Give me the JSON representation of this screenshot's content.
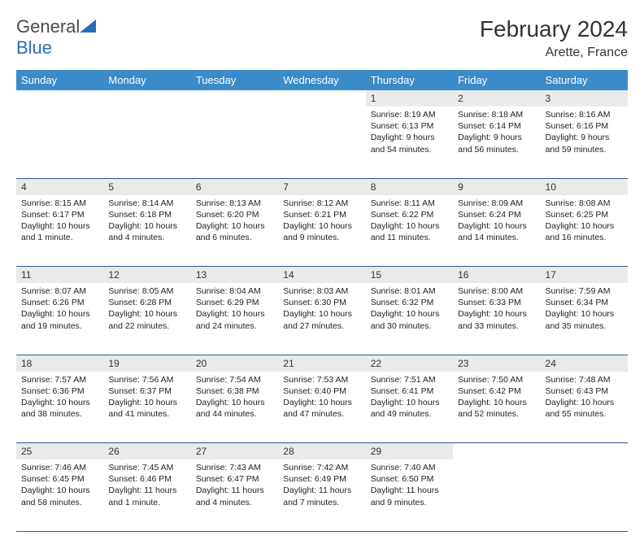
{
  "brand": {
    "part1": "General",
    "part2": "Blue"
  },
  "title": "February 2024",
  "location": "Arette, France",
  "colors": {
    "header_bg": "#3b8bc9",
    "header_text": "#ffffff",
    "daynum_bg": "#eaeaea",
    "border": "#2a5a8a",
    "logo_blue": "#2a6db8"
  },
  "weekdays": [
    "Sunday",
    "Monday",
    "Tuesday",
    "Wednesday",
    "Thursday",
    "Friday",
    "Saturday"
  ],
  "weeks": [
    [
      null,
      null,
      null,
      null,
      {
        "n": "1",
        "sr": "Sunrise: 8:19 AM",
        "ss": "Sunset: 6:13 PM",
        "dl": "Daylight: 9 hours and 54 minutes."
      },
      {
        "n": "2",
        "sr": "Sunrise: 8:18 AM",
        "ss": "Sunset: 6:14 PM",
        "dl": "Daylight: 9 hours and 56 minutes."
      },
      {
        "n": "3",
        "sr": "Sunrise: 8:16 AM",
        "ss": "Sunset: 6:16 PM",
        "dl": "Daylight: 9 hours and 59 minutes."
      }
    ],
    [
      {
        "n": "4",
        "sr": "Sunrise: 8:15 AM",
        "ss": "Sunset: 6:17 PM",
        "dl": "Daylight: 10 hours and 1 minute."
      },
      {
        "n": "5",
        "sr": "Sunrise: 8:14 AM",
        "ss": "Sunset: 6:18 PM",
        "dl": "Daylight: 10 hours and 4 minutes."
      },
      {
        "n": "6",
        "sr": "Sunrise: 8:13 AM",
        "ss": "Sunset: 6:20 PM",
        "dl": "Daylight: 10 hours and 6 minutes."
      },
      {
        "n": "7",
        "sr": "Sunrise: 8:12 AM",
        "ss": "Sunset: 6:21 PM",
        "dl": "Daylight: 10 hours and 9 minutes."
      },
      {
        "n": "8",
        "sr": "Sunrise: 8:11 AM",
        "ss": "Sunset: 6:22 PM",
        "dl": "Daylight: 10 hours and 11 minutes."
      },
      {
        "n": "9",
        "sr": "Sunrise: 8:09 AM",
        "ss": "Sunset: 6:24 PM",
        "dl": "Daylight: 10 hours and 14 minutes."
      },
      {
        "n": "10",
        "sr": "Sunrise: 8:08 AM",
        "ss": "Sunset: 6:25 PM",
        "dl": "Daylight: 10 hours and 16 minutes."
      }
    ],
    [
      {
        "n": "11",
        "sr": "Sunrise: 8:07 AM",
        "ss": "Sunset: 6:26 PM",
        "dl": "Daylight: 10 hours and 19 minutes."
      },
      {
        "n": "12",
        "sr": "Sunrise: 8:05 AM",
        "ss": "Sunset: 6:28 PM",
        "dl": "Daylight: 10 hours and 22 minutes."
      },
      {
        "n": "13",
        "sr": "Sunrise: 8:04 AM",
        "ss": "Sunset: 6:29 PM",
        "dl": "Daylight: 10 hours and 24 minutes."
      },
      {
        "n": "14",
        "sr": "Sunrise: 8:03 AM",
        "ss": "Sunset: 6:30 PM",
        "dl": "Daylight: 10 hours and 27 minutes."
      },
      {
        "n": "15",
        "sr": "Sunrise: 8:01 AM",
        "ss": "Sunset: 6:32 PM",
        "dl": "Daylight: 10 hours and 30 minutes."
      },
      {
        "n": "16",
        "sr": "Sunrise: 8:00 AM",
        "ss": "Sunset: 6:33 PM",
        "dl": "Daylight: 10 hours and 33 minutes."
      },
      {
        "n": "17",
        "sr": "Sunrise: 7:59 AM",
        "ss": "Sunset: 6:34 PM",
        "dl": "Daylight: 10 hours and 35 minutes."
      }
    ],
    [
      {
        "n": "18",
        "sr": "Sunrise: 7:57 AM",
        "ss": "Sunset: 6:36 PM",
        "dl": "Daylight: 10 hours and 38 minutes."
      },
      {
        "n": "19",
        "sr": "Sunrise: 7:56 AM",
        "ss": "Sunset: 6:37 PM",
        "dl": "Daylight: 10 hours and 41 minutes."
      },
      {
        "n": "20",
        "sr": "Sunrise: 7:54 AM",
        "ss": "Sunset: 6:38 PM",
        "dl": "Daylight: 10 hours and 44 minutes."
      },
      {
        "n": "21",
        "sr": "Sunrise: 7:53 AM",
        "ss": "Sunset: 6:40 PM",
        "dl": "Daylight: 10 hours and 47 minutes."
      },
      {
        "n": "22",
        "sr": "Sunrise: 7:51 AM",
        "ss": "Sunset: 6:41 PM",
        "dl": "Daylight: 10 hours and 49 minutes."
      },
      {
        "n": "23",
        "sr": "Sunrise: 7:50 AM",
        "ss": "Sunset: 6:42 PM",
        "dl": "Daylight: 10 hours and 52 minutes."
      },
      {
        "n": "24",
        "sr": "Sunrise: 7:48 AM",
        "ss": "Sunset: 6:43 PM",
        "dl": "Daylight: 10 hours and 55 minutes."
      }
    ],
    [
      {
        "n": "25",
        "sr": "Sunrise: 7:46 AM",
        "ss": "Sunset: 6:45 PM",
        "dl": "Daylight: 10 hours and 58 minutes."
      },
      {
        "n": "26",
        "sr": "Sunrise: 7:45 AM",
        "ss": "Sunset: 6:46 PM",
        "dl": "Daylight: 11 hours and 1 minute."
      },
      {
        "n": "27",
        "sr": "Sunrise: 7:43 AM",
        "ss": "Sunset: 6:47 PM",
        "dl": "Daylight: 11 hours and 4 minutes."
      },
      {
        "n": "28",
        "sr": "Sunrise: 7:42 AM",
        "ss": "Sunset: 6:49 PM",
        "dl": "Daylight: 11 hours and 7 minutes."
      },
      {
        "n": "29",
        "sr": "Sunrise: 7:40 AM",
        "ss": "Sunset: 6:50 PM",
        "dl": "Daylight: 11 hours and 9 minutes."
      },
      null,
      null
    ]
  ]
}
